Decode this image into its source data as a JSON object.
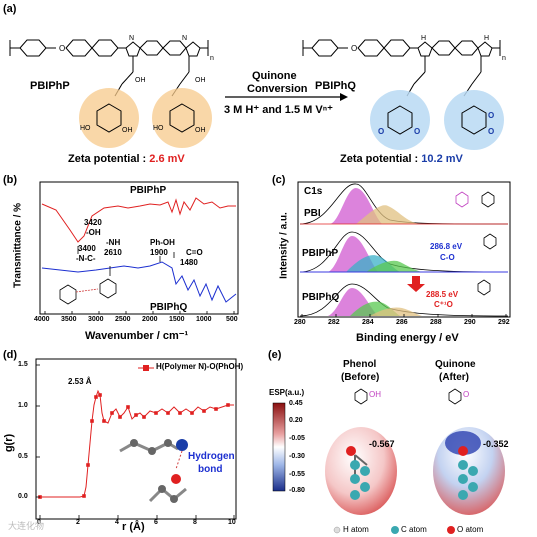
{
  "panel_a": {
    "label": "(a)",
    "left_polymer": "PBIPhP",
    "right_polymer": "PBIPhQ",
    "arrow_top_line1": "Quinone",
    "arrow_top_line2": "Conversion",
    "arrow_bottom": "3 M H⁺ and 1.5 M Vⁿ⁺",
    "zeta_left_prefix": "Zeta potential : ",
    "zeta_left_value": "2.6 mV",
    "zeta_right_prefix": "Zeta potential : ",
    "zeta_right_value": "10.2 mV",
    "subscript_n": "n",
    "oh": "OH",
    "ho": "HO",
    "o": "O"
  },
  "panel_b": {
    "label": "(b)",
    "ylabel": "Transmittance / %",
    "xlabel": "Wavenumber / cm⁻¹",
    "series_top": "PBIPhP",
    "series_bottom": "PBIPhQ",
    "ann_3420": "3420",
    "ann_oh": "-OH",
    "ann_3400": "3400",
    "ann_nc": "-N-C-",
    "ann_nh": "-NH",
    "ann_2610": "2610",
    "ann_phoh": "Ph-OH",
    "ann_1900": "1900",
    "ann_co": "C=O",
    "ann_1480": "1480",
    "xticks": [
      "4000",
      "3500",
      "3000",
      "2500",
      "2000",
      "1500",
      "1000",
      "500"
    ]
  },
  "panel_c": {
    "label": "(c)",
    "ylabel": "Intensity / a.u.",
    "xlabel": "Binding energy / eV",
    "c1s": "C1s",
    "pbi": "PBI",
    "pbiphp": "PBIPhP",
    "pbiphq": "PBIPhQ",
    "peak1": "286.8 eV",
    "peak1_label": "C-O",
    "peak2": "288.5 eV",
    "peak2_label": "C⁺¹O",
    "xticks": [
      "280",
      "282",
      "284",
      "286",
      "288",
      "290",
      "292"
    ]
  },
  "panel_d": {
    "label": "(d)",
    "ylabel": "g(r)",
    "xlabel": "r (Å)",
    "legend": "H(Polymer N)-O(PhOH)",
    "peak_label": "2.53 Å",
    "hbond_line1": "Hydrogen",
    "hbond_line2": "bond",
    "xticks": [
      "0",
      "2",
      "4",
      "6",
      "8",
      "10"
    ],
    "yticks": [
      "0.0",
      "0.5",
      "1.0",
      "1.5"
    ]
  },
  "panel_e": {
    "label": "(e)",
    "colorbar_title": "ESP(a.u.)",
    "colorbar_ticks": [
      "0.45",
      "0.20",
      "-0.05",
      "-0.30",
      "-0.55",
      "-0.80"
    ],
    "phenol_title": "Phenol",
    "phenol_sub": "(Before)",
    "quinone_title": "Quinone",
    "quinone_sub": "(After)",
    "phenol_value": "-0.567",
    "quinone_value": "-0.352",
    "legend_h": "H atom",
    "legend_c": "C atom",
    "legend_o": "O atom"
  },
  "watermark": "大连化物"
}
